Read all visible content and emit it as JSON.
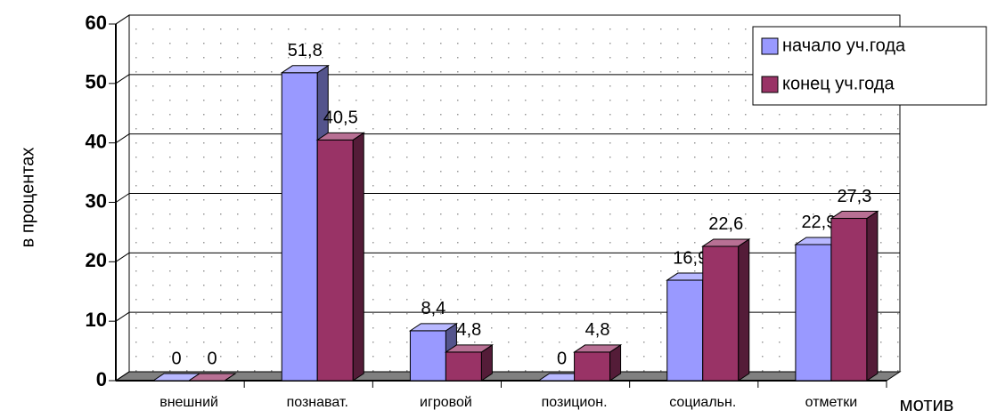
{
  "chart_data": {
    "type": "bar3d",
    "ylabel": "в процентах",
    "xlabel": "мотив",
    "categories": [
      "внешний",
      "познават.",
      "игровой",
      "позицион.",
      "социальн.",
      "отметки"
    ],
    "series": [
      {
        "name": "начало уч.года",
        "color": "#9999ff",
        "values": [
          0,
          51.8,
          8.4,
          0,
          16.9,
          22.9
        ],
        "value_labels": [
          "0",
          "51,8",
          "8,4",
          "0",
          "16,9",
          "22,9"
        ]
      },
      {
        "name": "конец уч.года",
        "color": "#993366",
        "values": [
          0,
          40.5,
          4.8,
          4.8,
          22.6,
          27.3
        ],
        "value_labels": [
          "0",
          "40,5",
          "4,8",
          "4,8",
          "22,6",
          "27,3"
        ]
      }
    ],
    "ylim": [
      0,
      60
    ],
    "yticks": [
      0,
      10,
      20,
      30,
      40,
      50,
      60
    ],
    "grid": true,
    "legend": "top-right"
  }
}
